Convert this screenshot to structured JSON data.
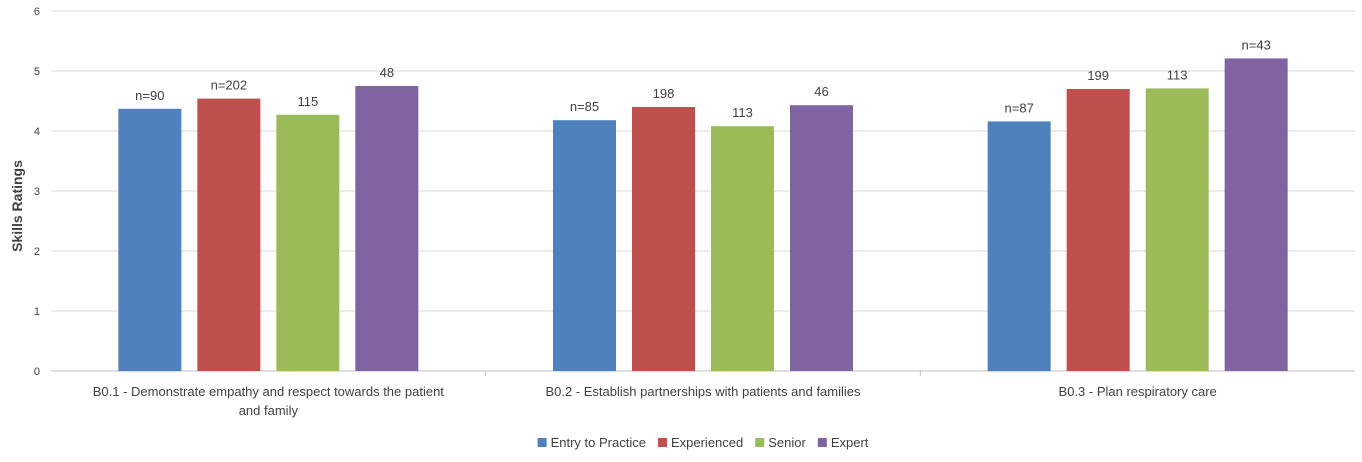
{
  "chart_data": {
    "type": "bar",
    "ylabel": "Skills Ratings",
    "ylim": [
      0,
      6
    ],
    "yticks": [
      0,
      1,
      2,
      3,
      4,
      5,
      6
    ],
    "grid": true,
    "legend_position": "bottom",
    "categories": [
      [
        "B0.1 - Demonstrate empathy and respect towards the patient",
        "and family"
      ],
      [
        "B0.2 - Establish partnerships with patients and families"
      ],
      [
        "B0.3 - Plan respiratory care"
      ]
    ],
    "series": [
      {
        "name": "Entry to Practice",
        "color": "#4F81BD",
        "values": [
          4.37,
          4.18,
          4.16
        ],
        "labels": [
          "n=90",
          "n=85",
          "n=87"
        ]
      },
      {
        "name": "Experienced",
        "color": "#C0504D",
        "values": [
          4.54,
          4.4,
          4.7
        ],
        "labels": [
          "n=202",
          "198",
          "199"
        ]
      },
      {
        "name": "Senior",
        "color": "#9BBB59",
        "values": [
          4.27,
          4.08,
          4.71
        ],
        "labels": [
          "115",
          "113",
          "113"
        ]
      },
      {
        "name": "Expert",
        "color": "#8064A2",
        "values": [
          4.75,
          4.43,
          5.21
        ],
        "labels": [
          "48",
          "46",
          "n=43"
        ]
      }
    ]
  }
}
